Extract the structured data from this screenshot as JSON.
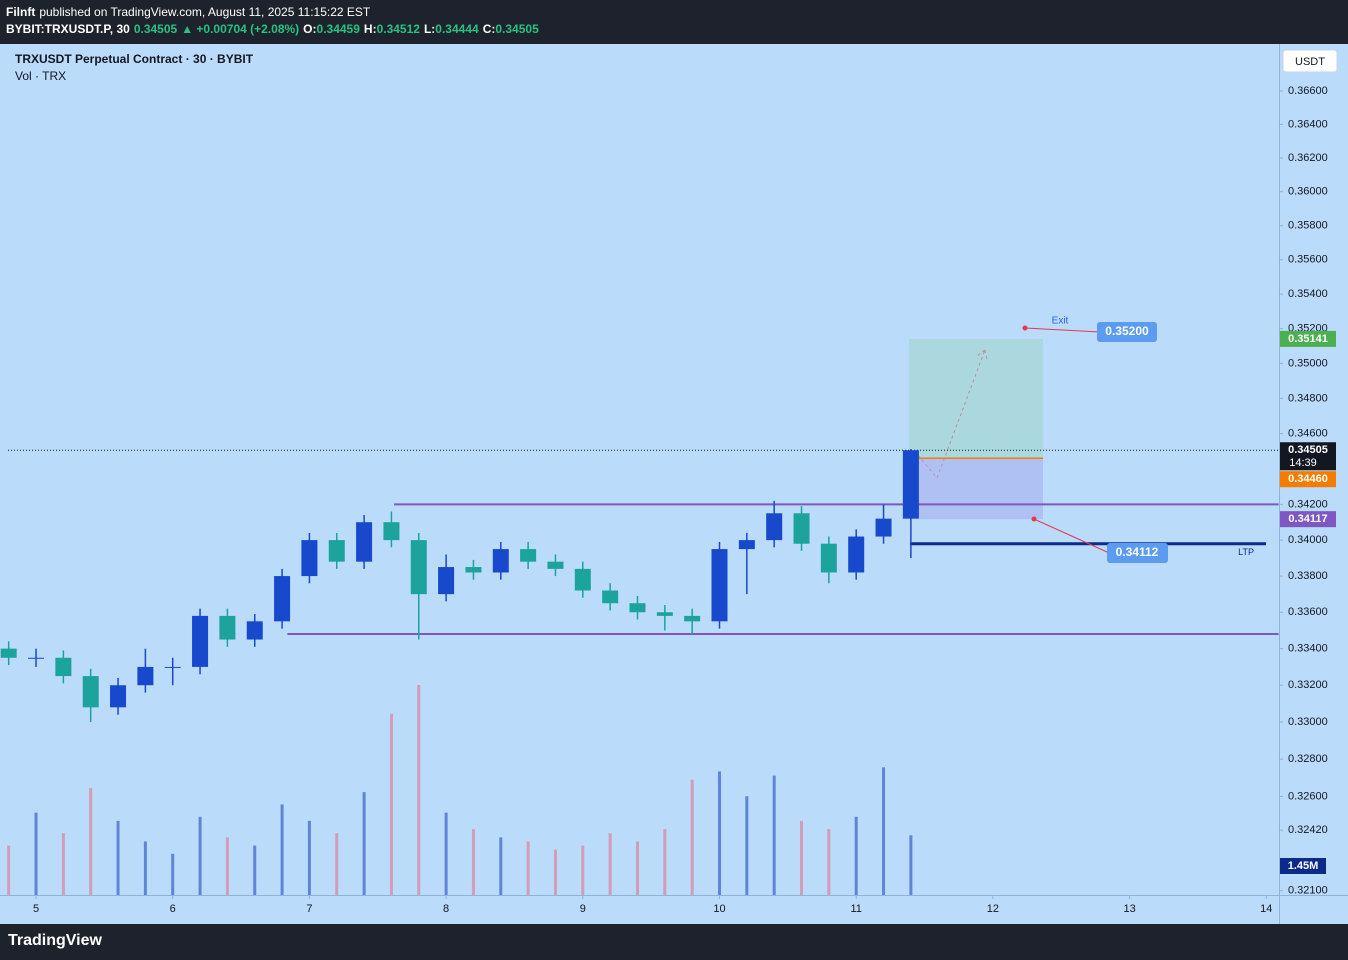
{
  "header": {
    "author": "Filnft",
    "published": "published on TradingView.com, August 11, 2025 11:15:22 EST",
    "symbol": "BYBIT:TRXUSDT.P, 30",
    "last": "0.34505",
    "change": "▲ +0.00704 (+2.08%)",
    "ohlc": [
      {
        "key": "O:",
        "value": "0.34459"
      },
      {
        "key": "H:",
        "value": "0.34512"
      },
      {
        "key": "L:",
        "value": "0.34444"
      },
      {
        "key": "C:",
        "value": "0.34505"
      }
    ]
  },
  "chart_data": {
    "type": "candlestick",
    "title": "TRXUSDT Perpetual Contract · 30 · BYBIT",
    "subtitle": "Vol · TRX",
    "currency": "USDT",
    "log_scale": true,
    "grid": false,
    "up_color": "#1848cc",
    "down_color": "#1ba39c",
    "x": [
      4.8,
      5.0,
      5.2,
      5.4,
      5.6,
      5.8,
      6.0,
      6.2,
      6.4,
      6.6,
      6.8,
      7.0,
      7.2,
      7.4,
      7.6,
      7.8,
      8.0,
      8.2,
      8.4,
      8.6,
      8.8,
      9.0,
      9.2,
      9.4,
      9.6,
      9.8,
      10.0,
      10.2,
      10.4,
      10.6,
      10.8,
      11.0,
      11.2,
      11.4
    ],
    "open": [
      0.334,
      0.3335,
      0.3335,
      0.3325,
      0.3308,
      0.332,
      0.333,
      0.333,
      0.3358,
      0.3345,
      0.3355,
      0.338,
      0.34,
      0.3388,
      0.341,
      0.34,
      0.337,
      0.3385,
      0.3382,
      0.3395,
      0.3388,
      0.3384,
      0.3372,
      0.3365,
      0.336,
      0.3358,
      0.3355,
      0.3395,
      0.34,
      0.3415,
      0.3398,
      0.3382,
      0.3402,
      0.3412
    ],
    "high": [
      0.3344,
      0.334,
      0.3339,
      0.3329,
      0.3324,
      0.334,
      0.3335,
      0.3362,
      0.3362,
      0.3359,
      0.3384,
      0.3404,
      0.3404,
      0.3414,
      0.3416,
      0.3404,
      0.3392,
      0.3389,
      0.3399,
      0.3399,
      0.3392,
      0.3388,
      0.3376,
      0.3369,
      0.3364,
      0.3362,
      0.3399,
      0.3404,
      0.3422,
      0.3419,
      0.3402,
      0.3406,
      0.342,
      0.34512
    ],
    "low": [
      0.3331,
      0.333,
      0.3321,
      0.33,
      0.3304,
      0.3316,
      0.332,
      0.3326,
      0.3341,
      0.3341,
      0.3351,
      0.3376,
      0.3384,
      0.3384,
      0.3396,
      0.3345,
      0.3366,
      0.3378,
      0.3378,
      0.3384,
      0.338,
      0.3368,
      0.3361,
      0.3356,
      0.335,
      0.3348,
      0.3351,
      0.337,
      0.3396,
      0.3394,
      0.3376,
      0.3378,
      0.3398,
      0.339
    ],
    "close": [
      0.3335,
      0.3335,
      0.3325,
      0.3308,
      0.332,
      0.333,
      0.333,
      0.3358,
      0.3345,
      0.3355,
      0.338,
      0.34,
      0.3388,
      0.341,
      0.34,
      0.337,
      0.3385,
      0.3382,
      0.3395,
      0.3388,
      0.3384,
      0.3372,
      0.3365,
      0.336,
      0.3358,
      0.3355,
      0.3395,
      0.34,
      0.3415,
      0.3398,
      0.3382,
      0.3402,
      0.3412,
      0.34505
    ],
    "volume": {
      "up_color": "#4a6fd0",
      "down_color": "#d98ca6",
      "values": [
        1200000,
        2000000,
        1500000,
        2600000,
        1800000,
        1300000,
        1000000,
        1900000,
        1400000,
        1200000,
        2200000,
        1800000,
        1500000,
        2500000,
        4400000,
        5100000,
        2000000,
        1600000,
        1400000,
        1300000,
        1100000,
        1200000,
        1500000,
        1300000,
        1600000,
        2800000,
        3000000,
        2400000,
        2900000,
        1800000,
        1600000,
        1900000,
        3100000,
        1450000
      ],
      "value_labels": [
        null,
        null,
        null,
        null,
        null,
        null,
        null,
        null,
        null,
        null,
        null,
        null,
        null,
        null,
        null,
        null,
        null,
        null,
        null,
        null,
        null,
        null,
        null,
        null,
        null,
        null,
        null,
        null,
        null,
        null,
        null,
        null,
        null,
        "1.45M"
      ]
    },
    "xlim": [
      4.795,
      14.093
    ],
    "xticks": [
      5,
      6,
      7,
      8,
      9,
      10,
      11,
      12,
      13,
      14
    ],
    "ylim": [
      0.32077,
      0.36883
    ],
    "yticks": [
      {
        "value": 0.366,
        "label": "0.36600"
      },
      {
        "value": 0.364,
        "label": "0.36400"
      },
      {
        "value": 0.362,
        "label": "0.36200"
      },
      {
        "value": 0.36,
        "label": "0.36000"
      },
      {
        "value": 0.358,
        "label": "0.35800"
      },
      {
        "value": 0.356,
        "label": "0.35600"
      },
      {
        "value": 0.354,
        "label": "0.35400"
      },
      {
        "value": 0.352,
        "label": "0.35200"
      },
      {
        "value": 0.35,
        "label": "0.35000"
      },
      {
        "value": 0.348,
        "label": "0.34800"
      },
      {
        "value": 0.346,
        "label": "0.34600"
      },
      {
        "value": 0.342,
        "label": "0.34200"
      },
      {
        "value": 0.34,
        "label": "0.34000"
      },
      {
        "value": 0.338,
        "label": "0.33800"
      },
      {
        "value": 0.336,
        "label": "0.33600"
      },
      {
        "value": 0.334,
        "label": "0.33400"
      },
      {
        "value": 0.332,
        "label": "0.33200"
      },
      {
        "value": 0.33,
        "label": "0.33000"
      },
      {
        "value": 0.328,
        "label": "0.32800"
      },
      {
        "value": 0.326,
        "label": "0.32600"
      },
      {
        "value": 0.3242,
        "label": "0.32420"
      },
      {
        "value": 0.321,
        "label": "0.32100"
      }
    ],
    "last_price": {
      "value": 0.34505,
      "countdown": "14:39"
    },
    "position": {
      "x_start": 11.386,
      "x_end": 12.366,
      "target": 0.35141,
      "entry": {
        "value": 0.3446,
        "label": "0.34460"
      },
      "stop": 0.34117,
      "target_color": "#4caf50",
      "entry_color": "#f57c00",
      "stop_color": "#7e57c2"
    },
    "levels": [
      {
        "value": 0.342,
        "x_start": 7.619,
        "x_end": 14.09,
        "color": "#7e57c2"
      },
      {
        "value": 0.3348,
        "x_start": 6.839,
        "x_end": 14.09,
        "color": "#7e57c2"
      },
      {
        "value": 0.3398,
        "x_start": 11.393,
        "x_end": 13.998,
        "color": "#0d2a8a",
        "label": "LTP"
      }
    ],
    "annotations": [
      {
        "text": "Exit"
      },
      {
        "text": "0.35200"
      },
      {
        "text": "0.34112"
      }
    ]
  },
  "footer": {
    "brand": "TradingView"
  }
}
